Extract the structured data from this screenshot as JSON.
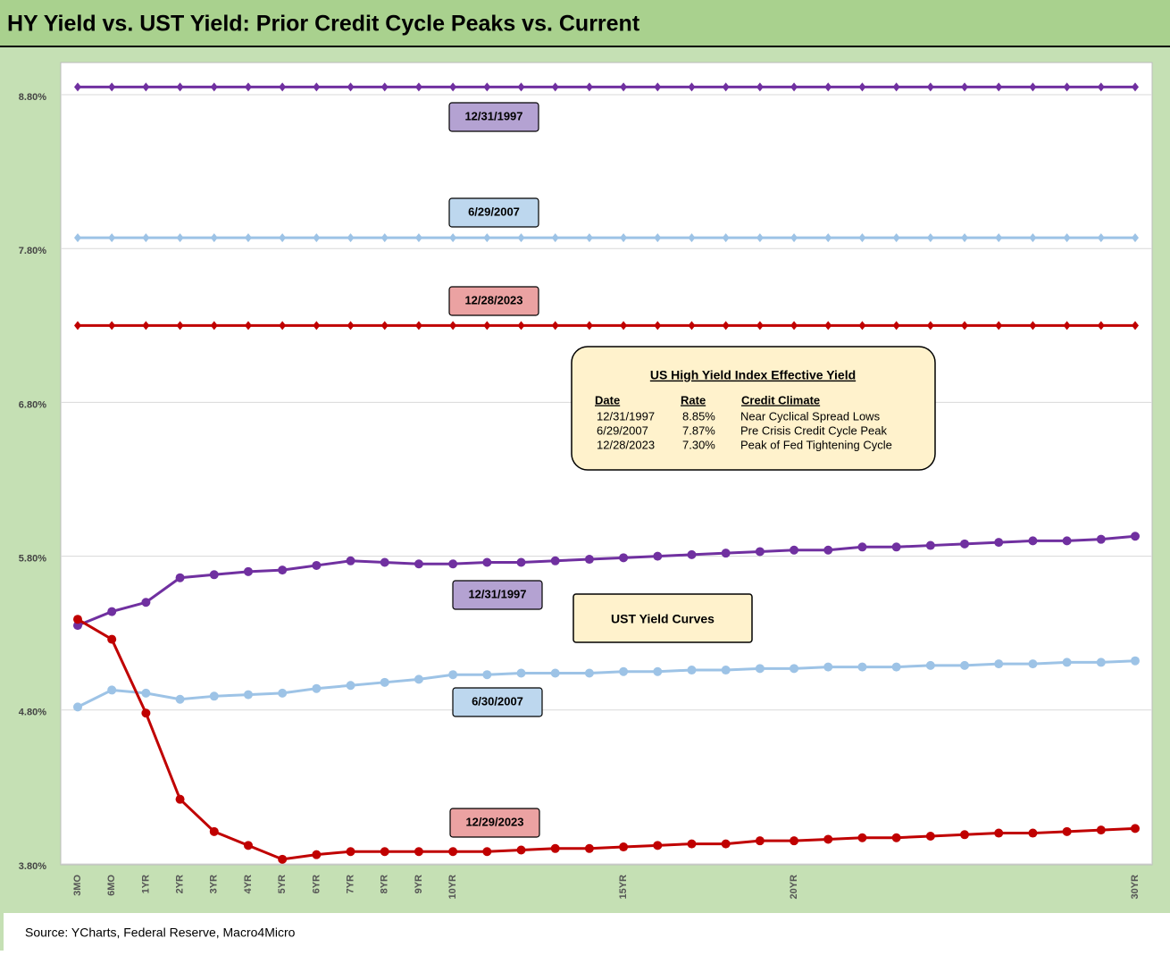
{
  "chart_data": {
    "type": "line",
    "title": "HY Yield vs. UST Yield: Prior Credit Cycle Peaks vs. Current",
    "source": "Source: YCharts, Federal Reserve, Macro4Micro",
    "categories": [
      "3MO",
      "6MO",
      "1YR",
      "2YR",
      "3YR",
      "4YR",
      "5YR",
      "6YR",
      "7YR",
      "8YR",
      "9YR",
      "10YR",
      null,
      null,
      null,
      null,
      "15YR",
      null,
      null,
      null,
      null,
      "20YR",
      null,
      null,
      null,
      null,
      null,
      null,
      null,
      null,
      null,
      "30YR"
    ],
    "ylim": [
      3.8,
      9.0
    ],
    "yticks": [
      {
        "value": 3.8,
        "label": "3.80%"
      },
      {
        "value": 4.8,
        "label": "4.80%"
      },
      {
        "value": 5.8,
        "label": "5.80%"
      },
      {
        "value": 6.8,
        "label": "6.80%"
      },
      {
        "value": 7.8,
        "label": "7.80%"
      },
      {
        "value": 8.8,
        "label": "8.80%"
      }
    ],
    "grid": true,
    "series": [
      {
        "name": "12/31/1997",
        "color": "#7030a0",
        "marker": "diamond",
        "values": [
          8.85,
          8.85,
          8.85,
          8.85,
          8.85,
          8.85,
          8.85,
          8.85,
          8.85,
          8.85,
          8.85,
          8.85,
          8.85,
          8.85,
          8.85,
          8.85,
          8.85,
          8.85,
          8.85,
          8.85,
          8.85,
          8.85,
          8.85,
          8.85,
          8.85,
          8.85,
          8.85,
          8.85,
          8.85,
          8.85,
          8.85,
          8.85
        ]
      },
      {
        "name": "6/29/2007",
        "color": "#9dc3e6",
        "marker": "diamond",
        "values": [
          7.87,
          7.87,
          7.87,
          7.87,
          7.87,
          7.87,
          7.87,
          7.87,
          7.87,
          7.87,
          7.87,
          7.87,
          7.87,
          7.87,
          7.87,
          7.87,
          7.87,
          7.87,
          7.87,
          7.87,
          7.87,
          7.87,
          7.87,
          7.87,
          7.87,
          7.87,
          7.87,
          7.87,
          7.87,
          7.87,
          7.87,
          7.87
        ]
      },
      {
        "name": "12/28/2023",
        "color": "#c00000",
        "marker": "diamond",
        "values": [
          7.3,
          7.3,
          7.3,
          7.3,
          7.3,
          7.3,
          7.3,
          7.3,
          7.3,
          7.3,
          7.3,
          7.3,
          7.3,
          7.3,
          7.3,
          7.3,
          7.3,
          7.3,
          7.3,
          7.3,
          7.3,
          7.3,
          7.3,
          7.3,
          7.3,
          7.3,
          7.3,
          7.3,
          7.3,
          7.3,
          7.3,
          7.3
        ]
      },
      {
        "name": "12/31/1997",
        "color": "#7030a0",
        "marker": "circle",
        "values": [
          5.35,
          5.44,
          5.5,
          5.66,
          5.68,
          5.7,
          5.71,
          5.74,
          5.77,
          5.76,
          5.75,
          5.75,
          5.76,
          5.76,
          5.77,
          5.78,
          5.79,
          5.8,
          5.81,
          5.82,
          5.83,
          5.84,
          5.84,
          5.86,
          5.86,
          5.87,
          5.88,
          5.89,
          5.9,
          5.9,
          5.91,
          5.93
        ]
      },
      {
        "name": "6/30/2007",
        "color": "#9dc3e6",
        "marker": "circle",
        "values": [
          4.82,
          4.93,
          4.91,
          4.87,
          4.89,
          4.9,
          4.91,
          4.94,
          4.96,
          4.98,
          5.0,
          5.03,
          5.03,
          5.04,
          5.04,
          5.04,
          5.05,
          5.05,
          5.06,
          5.06,
          5.07,
          5.07,
          5.08,
          5.08,
          5.08,
          5.09,
          5.09,
          5.1,
          5.1,
          5.11,
          5.11,
          5.12
        ]
      },
      {
        "name": "12/29/2023",
        "color": "#c00000",
        "marker": "circle",
        "values": [
          5.39,
          5.26,
          4.78,
          4.22,
          4.01,
          3.92,
          3.83,
          3.86,
          3.88,
          3.88,
          3.88,
          3.88,
          3.88,
          3.89,
          3.9,
          3.9,
          3.91,
          3.92,
          3.93,
          3.93,
          3.95,
          3.95,
          3.96,
          3.97,
          3.97,
          3.98,
          3.99,
          4.0,
          4.0,
          4.01,
          4.02,
          4.03
        ]
      }
    ],
    "annotations": [
      "UST Yield Curves"
    ],
    "table": {
      "title": "US High Yield Index Effective Yield",
      "columns": [
        "Date",
        "Rate",
        "Credit Climate"
      ],
      "rows": [
        [
          "12/31/1997",
          "8.85%",
          "Near Cyclical Spread Lows"
        ],
        [
          "6/29/2007",
          "7.87%",
          "Pre Crisis Credit Cycle Peak"
        ],
        [
          "12/28/2023",
          "7.30%",
          "Peak of Fed Tightening Cycle"
        ]
      ]
    }
  }
}
